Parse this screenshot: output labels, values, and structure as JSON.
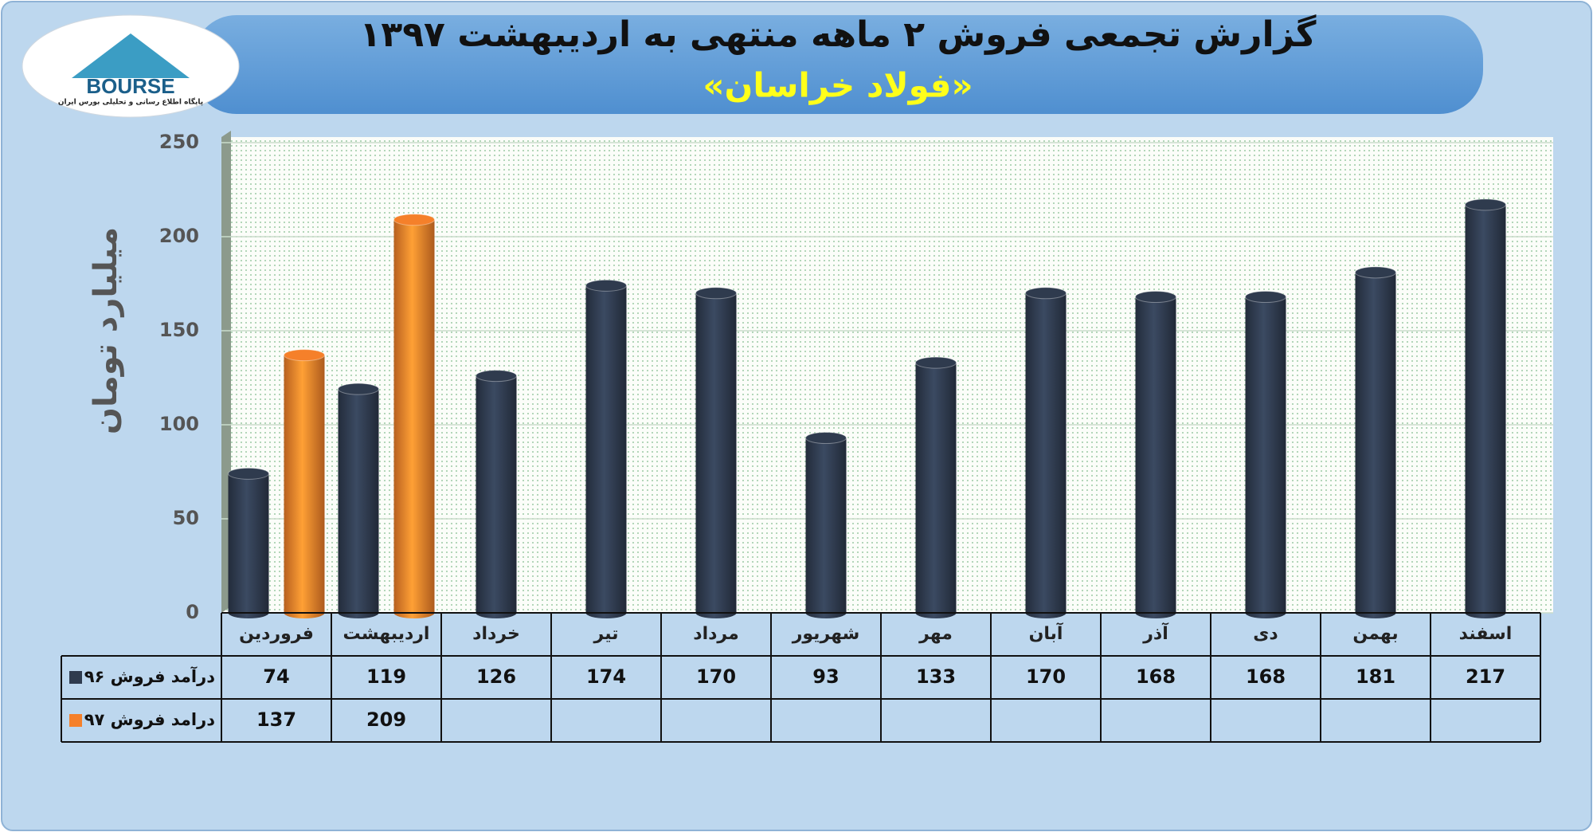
{
  "logo": {
    "text": "BOURSE",
    "subtitle": "پایگاه اطلاع رسانی و تحلیلی بورس ایران"
  },
  "chart_data": {
    "type": "bar",
    "title": "گزارش تجمعی فروش ۲ ماهه منتهی به اردیبهشت ۱۳۹۷",
    "subtitle": "«فولاد خراسان»",
    "y_label": "میلیارد تومان",
    "categories": [
      "فروردین",
      "اردیبهشت",
      "خرداد",
      "تیر",
      "مرداد",
      "شهریور",
      "مهر",
      "آبان",
      "آذر",
      "دی",
      "بهمن",
      "اسفند"
    ],
    "series": [
      {
        "name": "درآمد فروش ۹۶",
        "color": "#2f3b4e",
        "values": [
          74,
          119,
          126,
          174,
          170,
          93,
          133,
          170,
          168,
          168,
          181,
          217
        ]
      },
      {
        "name": "درامد فروش ۹۷",
        "color": "#f5802a",
        "values": [
          137,
          209,
          null,
          null,
          null,
          null,
          null,
          null,
          null,
          null,
          null,
          null
        ]
      }
    ],
    "ylim": [
      0,
      250
    ],
    "yticks": [
      0,
      50,
      100,
      150,
      200,
      250
    ],
    "grid": true
  }
}
